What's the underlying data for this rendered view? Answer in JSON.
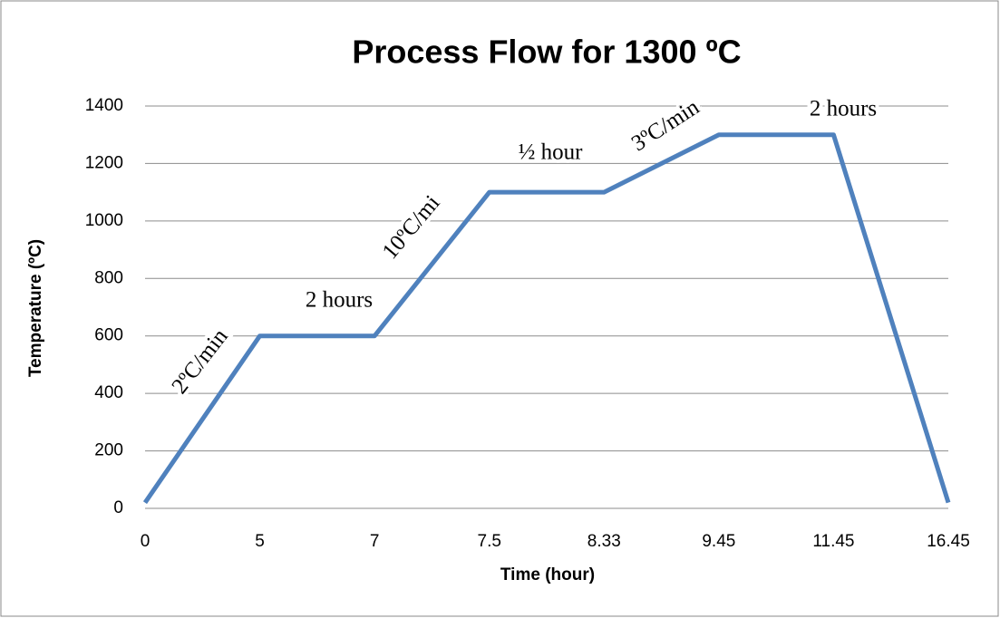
{
  "chart_data": {
    "type": "line",
    "title": "Process Flow for 1300 ºC",
    "x_label": "Time (hour)",
    "y_label": "Temperature (ºC)",
    "categories": [
      "0",
      "5",
      "7",
      "7.5",
      "8.33",
      "9.45",
      "11.45",
      "16.45"
    ],
    "series": [
      {
        "name": "Temperature",
        "color": "#4f81bd",
        "values": [
          20,
          600,
          600,
          1100,
          1100,
          1300,
          1300,
          20
        ]
      }
    ],
    "ylim": [
      0,
      1400
    ],
    "yticks": [
      0,
      200,
      400,
      600,
      800,
      1000,
      1200,
      1400
    ],
    "grid": true,
    "annotations": [
      "2ºC/min",
      "2 hours",
      "10ºC/mi",
      "½ hour",
      "3ºC/min",
      "2 hours"
    ]
  }
}
